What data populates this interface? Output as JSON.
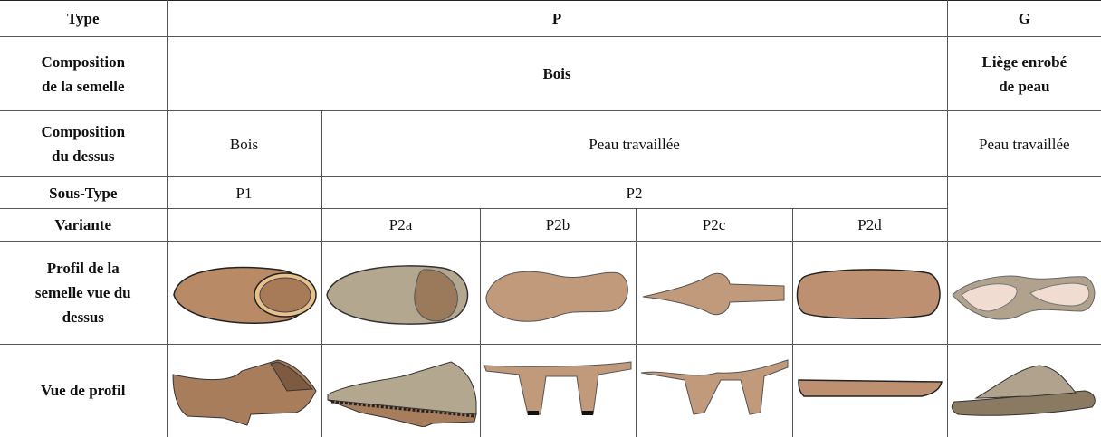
{
  "table": {
    "rows": [
      {
        "label": [
          "Type"
        ],
        "cells": [
          [
            "P"
          ],
          [
            "G"
          ]
        ]
      },
      {
        "label": [
          "Composition",
          "de la semelle"
        ],
        "cells": [
          [
            "Bois"
          ],
          [
            "Liège enrobé",
            "de peau"
          ]
        ]
      },
      {
        "label": [
          "Composition",
          "du dessus"
        ],
        "cells": [
          [
            "Bois"
          ],
          [
            "Peau travaillée"
          ],
          [
            "Peau travaillée"
          ]
        ]
      },
      {
        "label": [
          "Sous-Type"
        ],
        "cells": [
          [
            "P1"
          ],
          [
            "P2"
          ]
        ]
      },
      {
        "label": [
          "Variante"
        ],
        "cells": [
          [
            "P2a"
          ],
          [
            "P2b"
          ],
          [
            "P2c"
          ],
          [
            "P2d"
          ]
        ]
      },
      {
        "label": [
          "Profil de la",
          "semelle vue du",
          "dessus"
        ]
      },
      {
        "label": [
          "Vue de profil"
        ]
      }
    ]
  }
}
